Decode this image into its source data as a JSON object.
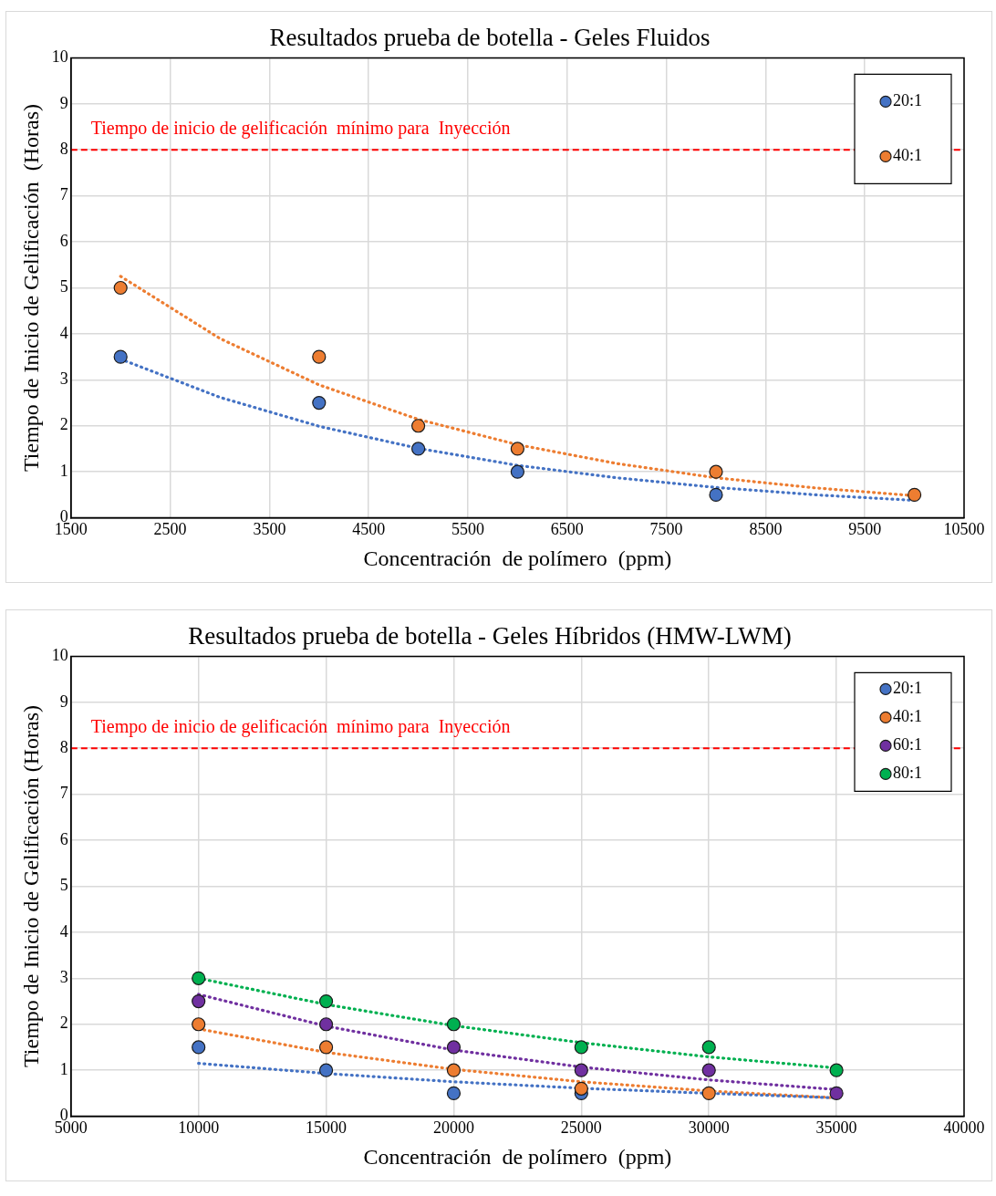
{
  "chart_data": [
    {
      "type": "scatter",
      "title": "Resultados prueba de botella - Geles Fluidos",
      "xlabel": "Concentración  de polímero  (ppm)",
      "ylabel": "Tiempo de Inicio de Gelificación  (Horas)",
      "xlim": [
        1500,
        10500
      ],
      "xticks": [
        1500,
        2500,
        3500,
        4500,
        5500,
        6500,
        7500,
        8500,
        9500,
        10500
      ],
      "ylim": [
        0,
        10
      ],
      "yticks": [
        0,
        1,
        2,
        3,
        4,
        5,
        6,
        7,
        8,
        9,
        10
      ],
      "grid": true,
      "legend": "top right",
      "marker": "circle",
      "series": [
        {
          "name": "20:1",
          "color": "#4472c4",
          "x": [
            2000,
            4000,
            5000,
            6000,
            8000
          ],
          "values": [
            3.5,
            2.5,
            1.5,
            1,
            0.5
          ]
        },
        {
          "name": "40:1",
          "color": "#ed7d31",
          "x": [
            2000,
            4000,
            5000,
            6000,
            8000,
            10000
          ],
          "values": [
            5,
            3.5,
            2,
            1.5,
            1,
            0.5
          ]
        },
        {
          "type": "line",
          "color": "#4472c4",
          "line_style": "dotted",
          "marker": "none",
          "x": [
            2000,
            3000,
            4000,
            5000,
            6000,
            7000,
            8000,
            9000,
            10000
          ],
          "values": [
            3.45,
            2.62,
            1.99,
            1.51,
            1.14,
            0.87,
            0.66,
            0.5,
            0.38
          ]
        },
        {
          "type": "line",
          "color": "#ed7d31",
          "line_style": "dotted",
          "marker": "none",
          "x": [
            2000,
            3000,
            4000,
            5000,
            6000,
            7000,
            8000,
            9000,
            10000
          ],
          "values": [
            5.25,
            3.9,
            2.89,
            2.14,
            1.59,
            1.18,
            0.87,
            0.65,
            0.48
          ]
        }
      ],
      "ref_lines": [
        {
          "axis": "y",
          "value": 8,
          "label": "Tiempo de inicio de gelificación  mínimo para  Inyección",
          "color": "#ff0000",
          "line_style": "dashed"
        }
      ]
    },
    {
      "type": "scatter",
      "title": "Resultados prueba de botella - Geles Híbridos (HMW-LWM)",
      "xlabel": "Concentración  de polímero  (ppm)",
      "ylabel": "Tiempo de Inicio de Gelificación (Horas)",
      "xlim": [
        5000,
        40000
      ],
      "xticks": [
        5000,
        10000,
        15000,
        20000,
        25000,
        30000,
        35000,
        40000
      ],
      "ylim": [
        0,
        10
      ],
      "yticks": [
        0,
        1,
        2,
        3,
        4,
        5,
        6,
        7,
        8,
        9,
        10
      ],
      "grid": true,
      "legend": "top right",
      "marker": "circle",
      "series": [
        {
          "name": "20:1",
          "color": "#4472c4",
          "x": [
            10000,
            15000,
            20000,
            25000
          ],
          "values": [
            1.5,
            1,
            0.5,
            0.5
          ]
        },
        {
          "name": "40:1",
          "color": "#ed7d31",
          "x": [
            10000,
            15000,
            20000,
            25000,
            30000
          ],
          "values": [
            2,
            1.5,
            1,
            0.6,
            0.5
          ]
        },
        {
          "name": "60:1",
          "color": "#7030a0",
          "x": [
            10000,
            15000,
            20000,
            25000,
            30000,
            35000
          ],
          "values": [
            2.5,
            2,
            1.5,
            1,
            1,
            0.5
          ]
        },
        {
          "name": "80:1",
          "color": "#00b050",
          "x": [
            10000,
            15000,
            20000,
            25000,
            30000,
            35000
          ],
          "values": [
            3,
            2.5,
            2,
            1.5,
            1.5,
            1
          ]
        },
        {
          "type": "line",
          "color": "#4472c4",
          "line_style": "dotted",
          "marker": "none",
          "x": [
            10000,
            15000,
            20000,
            25000,
            30000,
            35000
          ],
          "values": [
            1.15,
            0.93,
            0.75,
            0.61,
            0.5,
            0.4
          ]
        },
        {
          "type": "line",
          "color": "#ed7d31",
          "line_style": "dotted",
          "marker": "none",
          "x": [
            10000,
            15000,
            20000,
            25000,
            30000,
            35000
          ],
          "values": [
            1.9,
            1.39,
            1.02,
            0.75,
            0.55,
            0.4
          ]
        },
        {
          "type": "line",
          "color": "#7030a0",
          "line_style": "dotted",
          "marker": "none",
          "x": [
            10000,
            15000,
            20000,
            25000,
            30000,
            35000
          ],
          "values": [
            2.65,
            1.96,
            1.44,
            1.07,
            0.79,
            0.58
          ]
        },
        {
          "type": "line",
          "color": "#00b050",
          "line_style": "dotted",
          "marker": "none",
          "x": [
            10000,
            15000,
            20000,
            25000,
            30000,
            35000
          ],
          "values": [
            3.0,
            2.43,
            1.97,
            1.6,
            1.29,
            1.05
          ]
        }
      ],
      "ref_lines": [
        {
          "axis": "y",
          "value": 8,
          "label": "Tiempo de inicio de gelificación  mínimo para  Inyección",
          "color": "#ff0000",
          "line_style": "dashed"
        }
      ]
    }
  ]
}
